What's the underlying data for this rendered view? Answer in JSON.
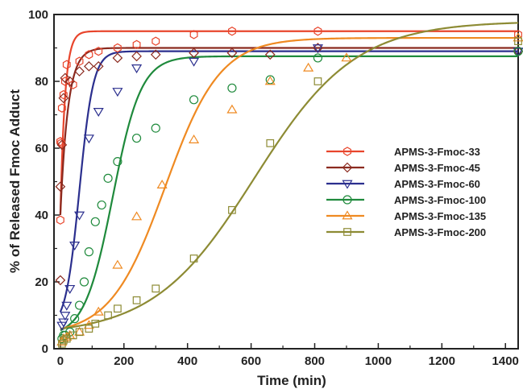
{
  "chart_data": {
    "type": "scatter",
    "xlabel": "Time (min)",
    "ylabel": "% of Released Fmoc Adduct",
    "xlim": [
      -20,
      1440
    ],
    "ylim": [
      0,
      100
    ],
    "xticks": [
      0,
      200,
      400,
      600,
      800,
      1000,
      1200,
      1400
    ],
    "yticks": [
      0,
      20,
      40,
      60,
      80,
      100
    ],
    "grid": false,
    "legend_position": "center-right",
    "series": [
      {
        "name": "APMS-3-Fmoc-33",
        "color": "#e8452c",
        "marker": "hexagon",
        "curve": "saturation",
        "fit": {
          "start": 40,
          "max": 95,
          "k": 0.069
        },
        "points": [
          [
            0,
            38.5
          ],
          [
            0,
            62
          ],
          [
            3,
            61.5
          ],
          [
            5,
            72
          ],
          [
            10,
            76
          ],
          [
            15,
            80
          ],
          [
            20,
            85
          ],
          [
            40,
            79
          ],
          [
            60,
            86
          ],
          [
            90,
            88
          ],
          [
            120,
            89
          ],
          [
            180,
            90
          ],
          [
            240,
            91
          ],
          [
            300,
            92
          ],
          [
            420,
            94
          ],
          [
            540,
            95
          ],
          [
            810,
            95
          ],
          [
            1440,
            94
          ]
        ]
      },
      {
        "name": "APMS-3-Fmoc-45",
        "color": "#8b2a1f",
        "marker": "diamond",
        "curve": "saturation",
        "fit": {
          "start": 40,
          "max": 90,
          "k": 0.042
        },
        "points": [
          [
            0,
            20.5
          ],
          [
            0,
            48.5
          ],
          [
            5,
            61
          ],
          [
            10,
            75
          ],
          [
            15,
            81
          ],
          [
            30,
            80
          ],
          [
            60,
            83
          ],
          [
            90,
            84.5
          ],
          [
            120,
            84.5
          ],
          [
            180,
            87
          ],
          [
            240,
            87.5
          ],
          [
            300,
            88
          ],
          [
            420,
            88.5
          ],
          [
            540,
            88.5
          ],
          [
            660,
            88
          ],
          [
            810,
            90
          ],
          [
            1440,
            89
          ]
        ]
      },
      {
        "name": "APMS-3-Fmoc-60",
        "color": "#2b2f8e",
        "marker": "triangle-down",
        "curve": "logistic",
        "fit": {
          "base": 6,
          "max": 89,
          "k": 0.0457,
          "mid": 60
        },
        "points": [
          [
            5,
            7
          ],
          [
            10,
            8
          ],
          [
            15,
            10
          ],
          [
            20,
            13
          ],
          [
            30,
            18
          ],
          [
            45,
            31
          ],
          [
            60,
            40
          ],
          [
            90,
            63
          ],
          [
            120,
            71
          ],
          [
            180,
            77
          ],
          [
            240,
            84
          ],
          [
            420,
            86
          ],
          [
            810,
            90
          ],
          [
            1440,
            89
          ]
        ]
      },
      {
        "name": "APMS-3-Fmoc-100",
        "color": "#1f8a3c",
        "marker": "circle",
        "curve": "logistic",
        "fit": {
          "base": 3.5,
          "max": 87.5,
          "k": 0.0225,
          "mid": 165
        },
        "points": [
          [
            5,
            3
          ],
          [
            10,
            4
          ],
          [
            15,
            4
          ],
          [
            30,
            5
          ],
          [
            45,
            9
          ],
          [
            60,
            13
          ],
          [
            75,
            20
          ],
          [
            90,
            29
          ],
          [
            110,
            38
          ],
          [
            130,
            43
          ],
          [
            150,
            51
          ],
          [
            180,
            56
          ],
          [
            240,
            63
          ],
          [
            300,
            66
          ],
          [
            420,
            74.5
          ],
          [
            540,
            78
          ],
          [
            660,
            80.5
          ],
          [
            810,
            87
          ],
          [
            1440,
            89
          ]
        ]
      },
      {
        "name": "APMS-3-Fmoc-135",
        "color": "#ef8a22",
        "marker": "triangle-up",
        "curve": "logistic",
        "fit": {
          "base": 4,
          "max": 93,
          "k": 0.0116,
          "mid": 330
        },
        "points": [
          [
            5,
            2
          ],
          [
            10,
            3
          ],
          [
            20,
            3.5
          ],
          [
            30,
            4
          ],
          [
            60,
            5
          ],
          [
            90,
            7
          ],
          [
            120,
            11
          ],
          [
            180,
            25
          ],
          [
            240,
            39.5
          ],
          [
            320,
            49
          ],
          [
            420,
            62.5
          ],
          [
            540,
            71.5
          ],
          [
            660,
            80
          ],
          [
            780,
            84
          ],
          [
            900,
            87
          ],
          [
            1440,
            93
          ]
        ]
      },
      {
        "name": "APMS-3-Fmoc-200",
        "color": "#8d8b34",
        "marker": "square",
        "curve": "logistic",
        "fit": {
          "base": 4,
          "max": 98,
          "k": 0.0063,
          "mid": 610
        },
        "points": [
          [
            5,
            1.5
          ],
          [
            10,
            2.5
          ],
          [
            20,
            3
          ],
          [
            40,
            4
          ],
          [
            60,
            5
          ],
          [
            90,
            6
          ],
          [
            110,
            7.5
          ],
          [
            150,
            10
          ],
          [
            180,
            12
          ],
          [
            240,
            14.5
          ],
          [
            300,
            18
          ],
          [
            420,
            27
          ],
          [
            540,
            41.5
          ],
          [
            660,
            61.5
          ],
          [
            810,
            80
          ],
          [
            1440,
            92
          ]
        ]
      }
    ]
  }
}
